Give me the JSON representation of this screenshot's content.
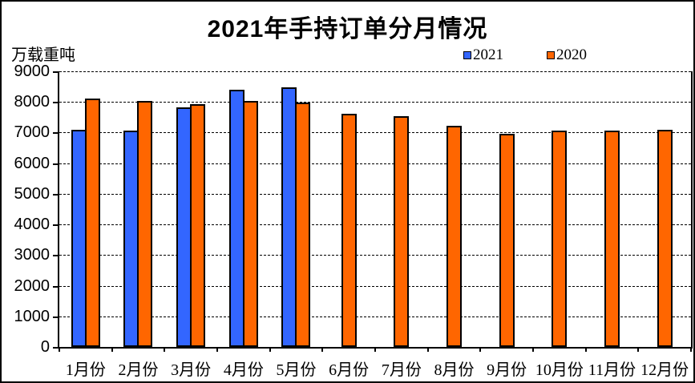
{
  "title": "2021年手持订单分月情况",
  "unit_label": "万载重吨",
  "legend": {
    "items": [
      {
        "label": "2021",
        "color": "#3366FF"
      },
      {
        "label": "2020",
        "color": "#FF6600"
      }
    ]
  },
  "chart_data": {
    "type": "bar",
    "title": "2021年手持订单分月情况",
    "ylabel": "万载重吨",
    "xlabel": "",
    "categories": [
      "1月份",
      "2月份",
      "3月份",
      "4月份",
      "5月份",
      "6月份",
      "7月份",
      "8月份",
      "9月份",
      "10月份",
      "11月份",
      "12月份"
    ],
    "series": [
      {
        "name": "2021",
        "color": "#3366FF",
        "values": [
          7090,
          7070,
          7830,
          8400,
          8470,
          null,
          null,
          null,
          null,
          null,
          null,
          null
        ]
      },
      {
        "name": "2020",
        "color": "#FF6600",
        "values": [
          8110,
          8030,
          7930,
          8040,
          7990,
          7610,
          7530,
          7220,
          6960,
          7070,
          7070,
          7100
        ]
      }
    ],
    "ylim": [
      0,
      9000
    ],
    "ytick_interval": 1000,
    "grid": "dashed-horizontal",
    "legend_position": "top-right",
    "bar_border_color": "#000000"
  }
}
